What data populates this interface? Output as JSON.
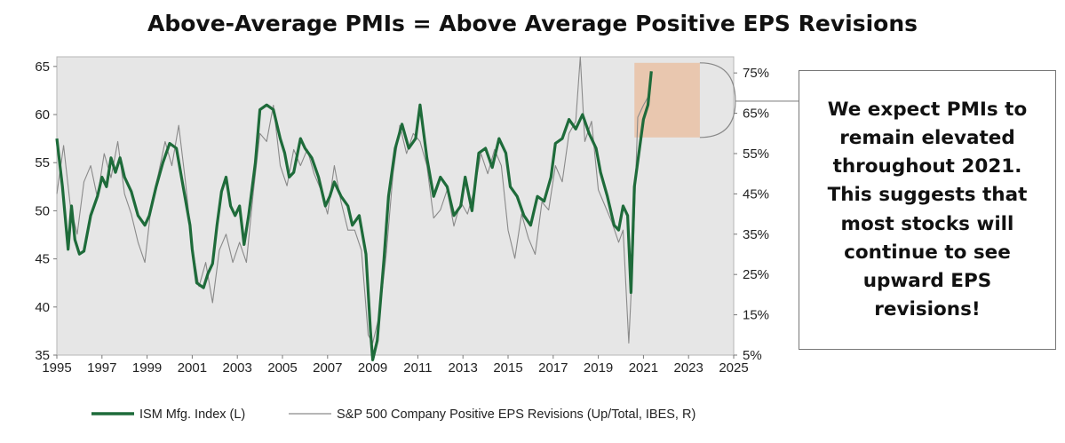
{
  "chart_data": {
    "type": "line",
    "title": "Above-Average PMIs = Above Average Positive EPS Revisions",
    "x_ticks": [
      "1995",
      "1997",
      "1999",
      "2001",
      "2003",
      "2005",
      "2007",
      "2009",
      "2011",
      "2013",
      "2015",
      "2017",
      "2019",
      "2021",
      "2023",
      "2025"
    ],
    "xlim": [
      1995,
      2025
    ],
    "y_left": {
      "ylim": [
        35,
        66
      ],
      "ticks": [
        "65",
        "60",
        "55",
        "50",
        "45",
        "40",
        "35"
      ]
    },
    "y_right": {
      "ylim": [
        0.05,
        0.79
      ],
      "ticks": [
        "75%",
        "65%",
        "55%",
        "45%",
        "35%",
        "25%",
        "15%",
        "5%"
      ]
    },
    "series": [
      {
        "name": "ISM Mfg. Index (L)",
        "axis": "left",
        "color": "#1e6b3a",
        "points": [
          [
            1995.0,
            57.5
          ],
          [
            1995.25,
            52.5
          ],
          [
            1995.5,
            46.0
          ],
          [
            1995.65,
            50.5
          ],
          [
            1995.8,
            47.0
          ],
          [
            1996.0,
            45.5
          ],
          [
            1996.2,
            45.8
          ],
          [
            1996.5,
            49.5
          ],
          [
            1996.8,
            51.5
          ],
          [
            1997.0,
            53.5
          ],
          [
            1997.2,
            52.5
          ],
          [
            1997.4,
            55.5
          ],
          [
            1997.6,
            54.0
          ],
          [
            1997.8,
            55.5
          ],
          [
            1998.0,
            53.5
          ],
          [
            1998.3,
            52.0
          ],
          [
            1998.6,
            49.5
          ],
          [
            1998.9,
            48.5
          ],
          [
            1999.1,
            49.5
          ],
          [
            1999.4,
            52.5
          ],
          [
            1999.7,
            55.0
          ],
          [
            2000.0,
            57.0
          ],
          [
            2000.3,
            56.5
          ],
          [
            2000.6,
            52.5
          ],
          [
            2000.9,
            48.5
          ],
          [
            2001.0,
            46.0
          ],
          [
            2001.2,
            42.5
          ],
          [
            2001.5,
            42.0
          ],
          [
            2001.7,
            43.5
          ],
          [
            2001.9,
            44.5
          ],
          [
            2002.1,
            48.5
          ],
          [
            2002.3,
            52.0
          ],
          [
            2002.5,
            53.5
          ],
          [
            2002.7,
            50.5
          ],
          [
            2002.9,
            49.5
          ],
          [
            2003.1,
            50.5
          ],
          [
            2003.3,
            46.5
          ],
          [
            2003.5,
            49.5
          ],
          [
            2003.8,
            55.0
          ],
          [
            2004.0,
            60.5
          ],
          [
            2004.3,
            61.0
          ],
          [
            2004.6,
            60.5
          ],
          [
            2004.9,
            57.5
          ],
          [
            2005.1,
            56.0
          ],
          [
            2005.3,
            53.5
          ],
          [
            2005.5,
            54.0
          ],
          [
            2005.8,
            57.5
          ],
          [
            2006.0,
            56.5
          ],
          [
            2006.3,
            55.5
          ],
          [
            2006.6,
            53.5
          ],
          [
            2006.9,
            50.5
          ],
          [
            2007.1,
            51.5
          ],
          [
            2007.3,
            53.0
          ],
          [
            2007.6,
            51.5
          ],
          [
            2007.9,
            50.5
          ],
          [
            2008.1,
            48.5
          ],
          [
            2008.4,
            49.5
          ],
          [
            2008.7,
            45.5
          ],
          [
            2008.9,
            37.5
          ],
          [
            2009.0,
            34.5
          ],
          [
            2009.2,
            36.5
          ],
          [
            2009.5,
            45.0
          ],
          [
            2009.7,
            51.5
          ],
          [
            2010.0,
            56.5
          ],
          [
            2010.3,
            59.0
          ],
          [
            2010.6,
            56.5
          ],
          [
            2010.9,
            57.5
          ],
          [
            2011.1,
            61.0
          ],
          [
            2011.4,
            55.5
          ],
          [
            2011.7,
            51.5
          ],
          [
            2012.0,
            53.5
          ],
          [
            2012.3,
            52.5
          ],
          [
            2012.6,
            49.5
          ],
          [
            2012.9,
            50.5
          ],
          [
            2013.1,
            53.5
          ],
          [
            2013.4,
            50.0
          ],
          [
            2013.7,
            56.0
          ],
          [
            2014.0,
            56.5
          ],
          [
            2014.3,
            54.5
          ],
          [
            2014.6,
            57.5
          ],
          [
            2014.9,
            56.0
          ],
          [
            2015.1,
            52.5
          ],
          [
            2015.4,
            51.5
          ],
          [
            2015.7,
            49.5
          ],
          [
            2016.0,
            48.5
          ],
          [
            2016.3,
            51.5
          ],
          [
            2016.6,
            51.0
          ],
          [
            2016.9,
            53.5
          ],
          [
            2017.1,
            57.0
          ],
          [
            2017.4,
            57.5
          ],
          [
            2017.7,
            59.5
          ],
          [
            2018.0,
            58.5
          ],
          [
            2018.3,
            60.0
          ],
          [
            2018.6,
            58.0
          ],
          [
            2018.9,
            56.5
          ],
          [
            2019.1,
            54.0
          ],
          [
            2019.4,
            51.5
          ],
          [
            2019.7,
            48.5
          ],
          [
            2019.9,
            48.0
          ],
          [
            2020.1,
            50.5
          ],
          [
            2020.3,
            49.5
          ],
          [
            2020.45,
            41.5
          ],
          [
            2020.6,
            52.5
          ],
          [
            2020.8,
            56.0
          ],
          [
            2021.0,
            59.5
          ],
          [
            2021.2,
            61.0
          ],
          [
            2021.35,
            64.5
          ]
        ]
      },
      {
        "name": "S&P 500 Company Positive EPS Revisions (Up/Total, IBES, R)",
        "axis": "right",
        "color": "#8a8a8a",
        "points": [
          [
            1995.0,
            0.45
          ],
          [
            1995.3,
            0.57
          ],
          [
            1995.6,
            0.42
          ],
          [
            1995.9,
            0.35
          ],
          [
            1996.2,
            0.48
          ],
          [
            1996.5,
            0.52
          ],
          [
            1996.8,
            0.44
          ],
          [
            1997.1,
            0.55
          ],
          [
            1997.4,
            0.49
          ],
          [
            1997.7,
            0.58
          ],
          [
            1998.0,
            0.45
          ],
          [
            1998.3,
            0.4
          ],
          [
            1998.6,
            0.33
          ],
          [
            1998.9,
            0.28
          ],
          [
            1999.2,
            0.43
          ],
          [
            1999.5,
            0.5
          ],
          [
            1999.8,
            0.58
          ],
          [
            2000.1,
            0.52
          ],
          [
            2000.4,
            0.62
          ],
          [
            2000.7,
            0.48
          ],
          [
            2001.0,
            0.32
          ],
          [
            2001.3,
            0.22
          ],
          [
            2001.6,
            0.28
          ],
          [
            2001.9,
            0.18
          ],
          [
            2002.2,
            0.31
          ],
          [
            2002.5,
            0.35
          ],
          [
            2002.8,
            0.28
          ],
          [
            2003.1,
            0.33
          ],
          [
            2003.4,
            0.28
          ],
          [
            2003.7,
            0.45
          ],
          [
            2004.0,
            0.6
          ],
          [
            2004.3,
            0.58
          ],
          [
            2004.6,
            0.67
          ],
          [
            2004.9,
            0.52
          ],
          [
            2005.2,
            0.47
          ],
          [
            2005.5,
            0.56
          ],
          [
            2005.8,
            0.52
          ],
          [
            2006.1,
            0.56
          ],
          [
            2006.4,
            0.5
          ],
          [
            2006.7,
            0.46
          ],
          [
            2007.0,
            0.4
          ],
          [
            2007.3,
            0.52
          ],
          [
            2007.6,
            0.43
          ],
          [
            2007.9,
            0.36
          ],
          [
            2008.2,
            0.36
          ],
          [
            2008.5,
            0.31
          ],
          [
            2008.8,
            0.1
          ],
          [
            2009.0,
            0.08
          ],
          [
            2009.3,
            0.15
          ],
          [
            2009.6,
            0.3
          ],
          [
            2009.9,
            0.5
          ],
          [
            2010.2,
            0.62
          ],
          [
            2010.5,
            0.55
          ],
          [
            2010.8,
            0.6
          ],
          [
            2011.1,
            0.58
          ],
          [
            2011.4,
            0.52
          ],
          [
            2011.7,
            0.39
          ],
          [
            2012.0,
            0.41
          ],
          [
            2012.3,
            0.46
          ],
          [
            2012.6,
            0.37
          ],
          [
            2012.9,
            0.43
          ],
          [
            2013.2,
            0.4
          ],
          [
            2013.5,
            0.46
          ],
          [
            2013.8,
            0.55
          ],
          [
            2014.1,
            0.5
          ],
          [
            2014.4,
            0.56
          ],
          [
            2014.7,
            0.52
          ],
          [
            2015.0,
            0.36
          ],
          [
            2015.3,
            0.29
          ],
          [
            2015.6,
            0.4
          ],
          [
            2015.9,
            0.34
          ],
          [
            2016.2,
            0.3
          ],
          [
            2016.5,
            0.43
          ],
          [
            2016.8,
            0.41
          ],
          [
            2017.1,
            0.52
          ],
          [
            2017.4,
            0.48
          ],
          [
            2017.7,
            0.6
          ],
          [
            2018.0,
            0.63
          ],
          [
            2018.2,
            0.79
          ],
          [
            2018.4,
            0.58
          ],
          [
            2018.7,
            0.63
          ],
          [
            2019.0,
            0.46
          ],
          [
            2019.3,
            0.42
          ],
          [
            2019.6,
            0.38
          ],
          [
            2019.9,
            0.33
          ],
          [
            2020.1,
            0.36
          ],
          [
            2020.35,
            0.08
          ],
          [
            2020.55,
            0.32
          ],
          [
            2020.75,
            0.64
          ],
          [
            2021.0,
            0.67
          ],
          [
            2021.2,
            0.69
          ]
        ]
      }
    ],
    "annotation": "Shaded region around the projected 2021 levels"
  },
  "callout": "We expect PMIs to remain elevated throughout 2021. This suggests that most stocks will continue to see upward EPS revisions!"
}
